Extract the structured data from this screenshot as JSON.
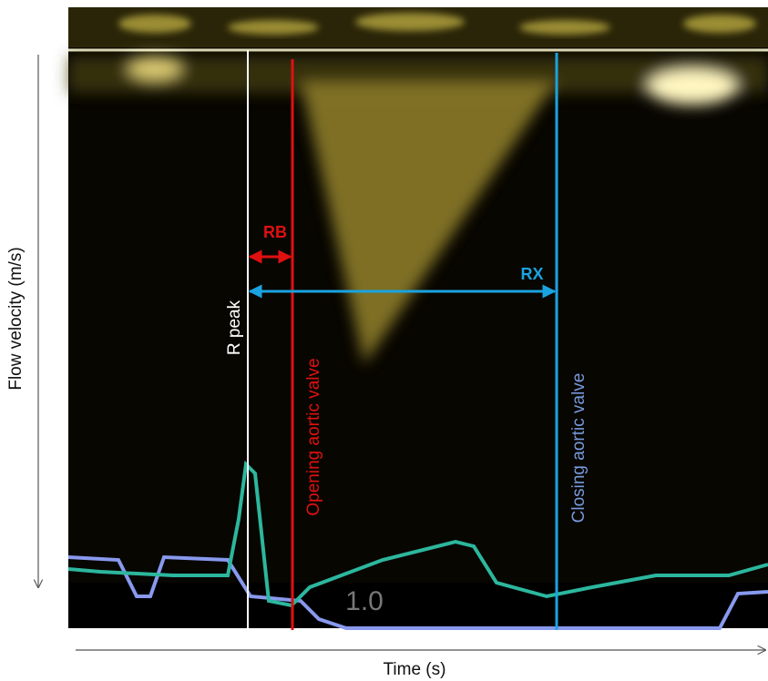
{
  "axes": {
    "y_label": "Flow velocity (m/s)",
    "x_label": "Time (s)"
  },
  "annotations": {
    "r_peak": "R peak",
    "opening": "Opening aortic valve",
    "closing": "Closing aortic valve",
    "rb": "RB",
    "rx": "RX"
  },
  "scale_label": "1.0"
}
